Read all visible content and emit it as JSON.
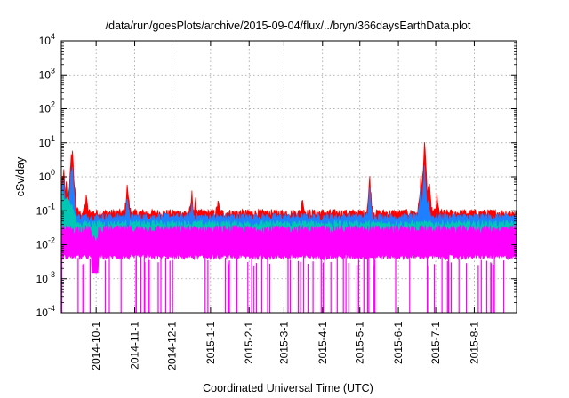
{
  "chart_data": {
    "type": "area",
    "title": "/data/run/goesPlots/archive/2015-09-04/flux/../bryn/366daysEarthData.plot",
    "xlabel": "Coordinated Universal Time (UTC)",
    "ylabel": "cSv/day",
    "x_range": [
      "2014-09-03",
      "2015-09-04"
    ],
    "y_scale": "log",
    "ylim": [
      0.0001,
      10000
    ],
    "grid": true,
    "legend": "none",
    "y_ticks": [
      {
        "value": 0.0001,
        "base": "10",
        "exp": "-4"
      },
      {
        "value": 0.001,
        "base": "10",
        "exp": "-3"
      },
      {
        "value": 0.01,
        "base": "10",
        "exp": "-2"
      },
      {
        "value": 0.1,
        "base": "10",
        "exp": "-1"
      },
      {
        "value": 1,
        "base": "10",
        "exp": "0"
      },
      {
        "value": 10,
        "base": "10",
        "exp": "1"
      },
      {
        "value": 100,
        "base": "10",
        "exp": "2"
      },
      {
        "value": 1000,
        "base": "10",
        "exp": "3"
      },
      {
        "value": 10000,
        "base": "10",
        "exp": "4"
      }
    ],
    "x_ticks": [
      {
        "date": "2014-10-01",
        "label": "2014-10-1"
      },
      {
        "date": "2014-11-01",
        "label": "2014-11-1"
      },
      {
        "date": "2014-12-01",
        "label": "2014-12-1"
      },
      {
        "date": "2015-01-01",
        "label": "2015-1-1"
      },
      {
        "date": "2015-02-01",
        "label": "2015-2-1"
      },
      {
        "date": "2015-03-01",
        "label": "2015-3-1"
      },
      {
        "date": "2015-04-01",
        "label": "2015-4-1"
      },
      {
        "date": "2015-05-01",
        "label": "2015-5-1"
      },
      {
        "date": "2015-06-01",
        "label": "2015-6-1"
      },
      {
        "date": "2015-07-01",
        "label": "2015-7-1"
      },
      {
        "date": "2015-08-01",
        "label": "2015-8-1"
      }
    ],
    "series": [
      {
        "color": "#ff0000",
        "baseline": 0.085,
        "peaks": [
          {
            "x": "2014-09-04",
            "y": 0.9
          },
          {
            "x": "2014-09-05",
            "y": 1.4
          },
          {
            "x": "2014-09-07",
            "y": 0.6
          },
          {
            "x": "2014-09-11",
            "y": 5.0
          },
          {
            "x": "2014-09-12",
            "y": 4.5
          },
          {
            "x": "2014-09-14",
            "y": 0.35
          },
          {
            "x": "2014-09-23",
            "y": 0.28
          },
          {
            "x": "2014-10-26",
            "y": 0.55
          },
          {
            "x": "2014-10-27",
            "y": 0.25
          },
          {
            "x": "2014-12-17",
            "y": 0.3
          },
          {
            "x": "2014-12-20",
            "y": 0.18
          },
          {
            "x": "2015-01-07",
            "y": 0.2
          },
          {
            "x": "2015-03-16",
            "y": 0.25
          },
          {
            "x": "2015-05-09",
            "y": 0.95
          },
          {
            "x": "2015-06-19",
            "y": 0.9
          },
          {
            "x": "2015-06-21",
            "y": 1.2
          },
          {
            "x": "2015-06-22",
            "y": 9.5
          },
          {
            "x": "2015-06-25",
            "y": 0.5
          },
          {
            "x": "2015-06-26",
            "y": 0.45
          },
          {
            "x": "2015-07-02",
            "y": 0.25
          }
        ]
      },
      {
        "color": "#1e7fff",
        "baseline": 0.065,
        "peaks": [
          {
            "x": "2014-09-04",
            "y": 0.6
          },
          {
            "x": "2014-09-05",
            "y": 1.0
          },
          {
            "x": "2014-09-11",
            "y": 2.5
          },
          {
            "x": "2014-09-12",
            "y": 2.0
          },
          {
            "x": "2014-10-26",
            "y": 0.3
          },
          {
            "x": "2014-12-17",
            "y": 0.18
          },
          {
            "x": "2015-05-09",
            "y": 0.5
          },
          {
            "x": "2015-06-19",
            "y": 0.5
          },
          {
            "x": "2015-06-22",
            "y": 2.5
          },
          {
            "x": "2015-06-25",
            "y": 0.3
          }
        ]
      },
      {
        "color": "#00c8b4",
        "baseline": 0.04,
        "peaks": []
      },
      {
        "color": "#ff00ff",
        "baseline": 0.028,
        "min_level": 0.004,
        "dropouts_to": 0.0001,
        "dropouts_per_week": 1.5
      }
    ]
  }
}
